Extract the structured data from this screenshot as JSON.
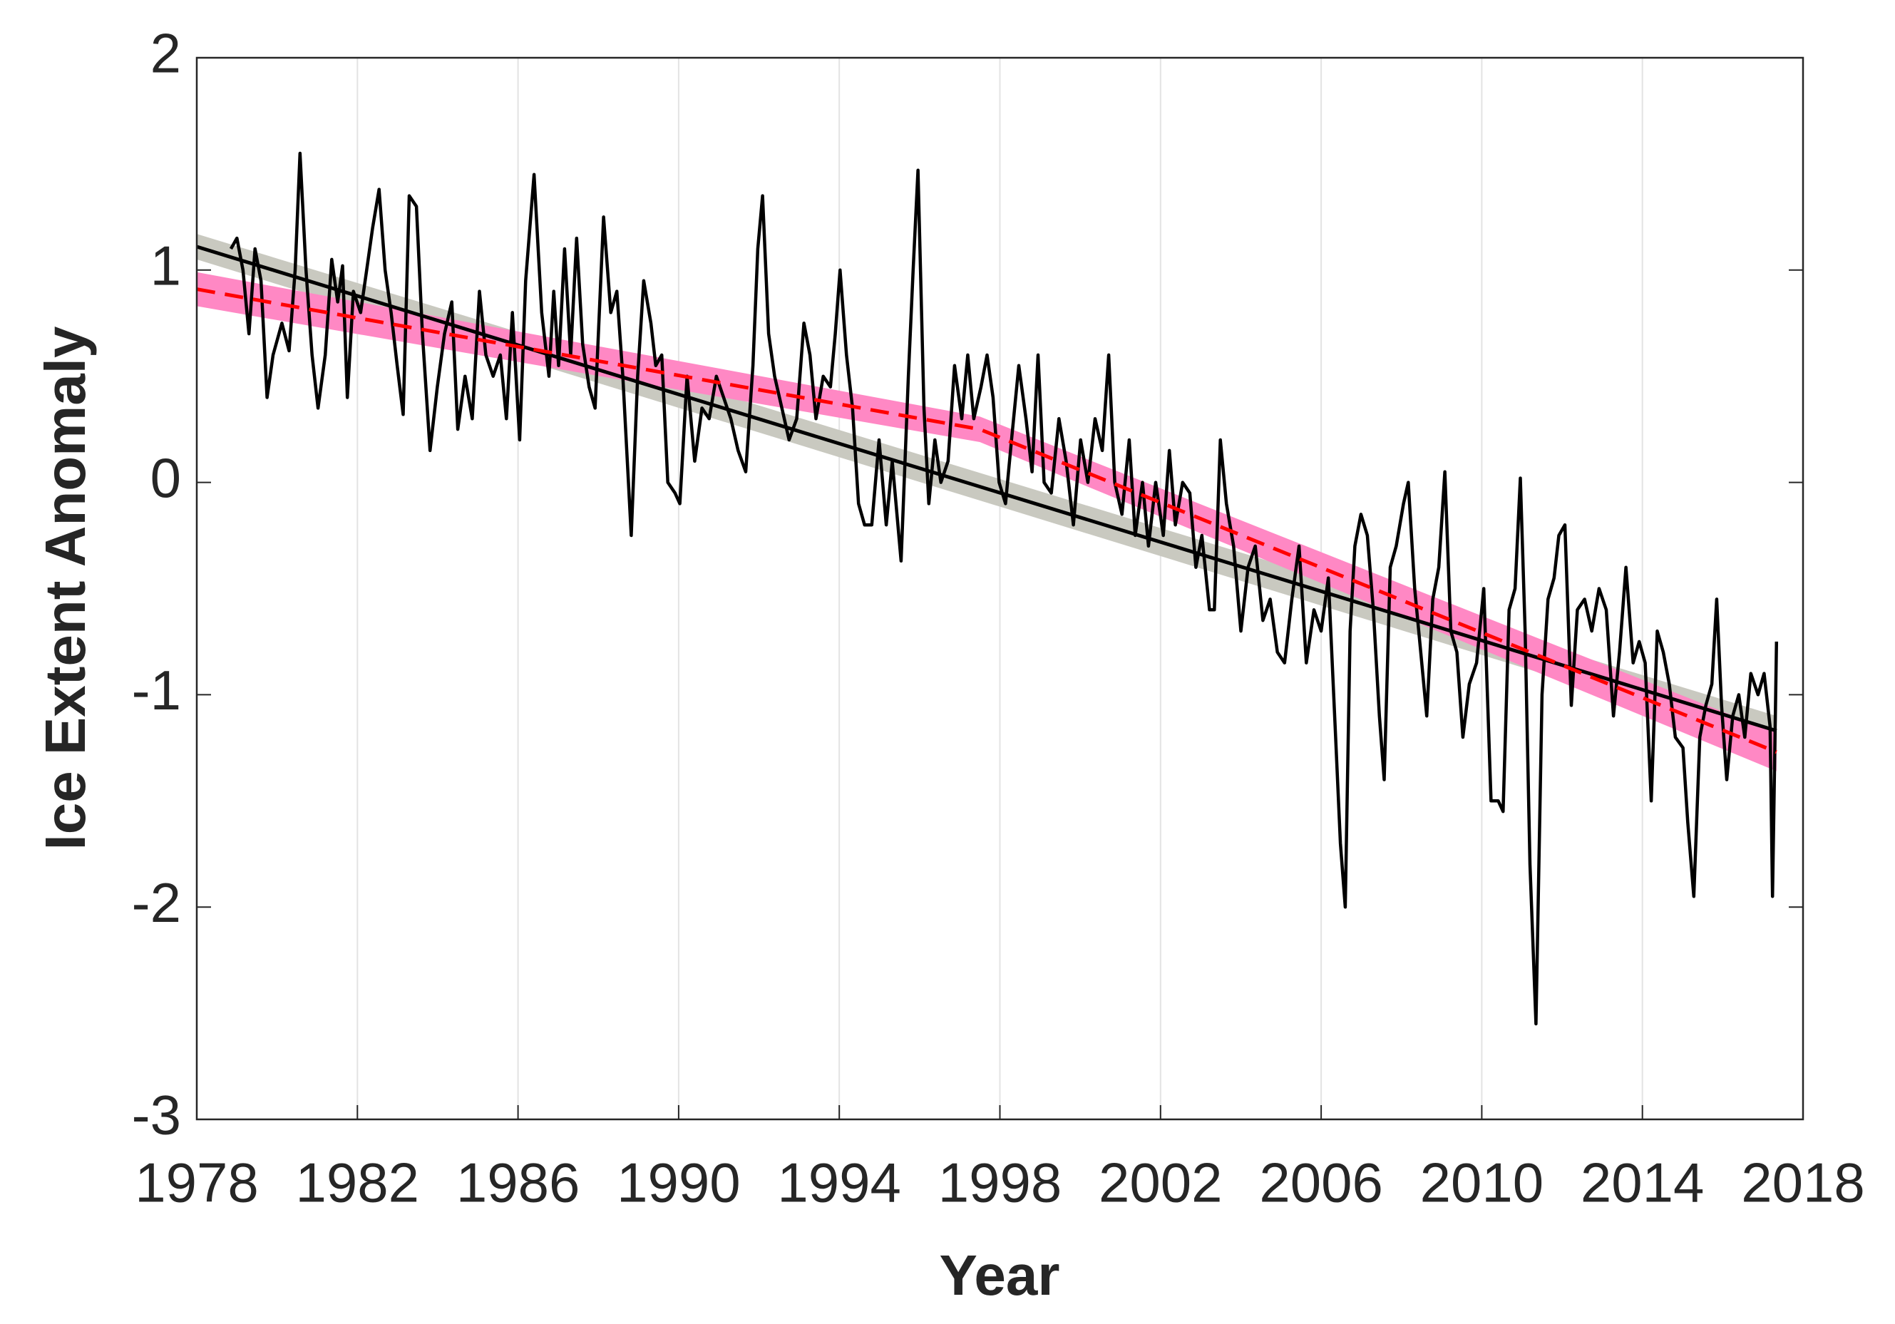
{
  "chart_data": {
    "type": "line",
    "xlabel": "Year",
    "ylabel": "Ice Extent Anomaly",
    "xlim": [
      1978,
      2018
    ],
    "ylim": [
      -3,
      2
    ],
    "xticks": [
      1978,
      1982,
      1986,
      1990,
      1994,
      1998,
      2002,
      2006,
      2010,
      2014,
      2018
    ],
    "yticks": [
      -3,
      -2,
      -1,
      0,
      1,
      2
    ],
    "grid": "x",
    "series": [
      {
        "color": "#000000",
        "x": [
          1978.85,
          1979.0,
          1979.15,
          1979.3,
          1979.45,
          1979.6,
          1979.75,
          1979.9,
          1980.12,
          1980.3,
          1980.45,
          1980.57,
          1980.72,
          1980.87,
          1981.02,
          1981.2,
          1981.36,
          1981.51,
          1981.63,
          1981.75,
          1981.9,
          1982.08,
          1982.23,
          1982.38,
          1982.54,
          1982.69,
          1982.84,
          1982.99,
          1983.14,
          1983.29,
          1983.47,
          1983.62,
          1983.81,
          1983.99,
          1984.17,
          1984.35,
          1984.5,
          1984.68,
          1984.86,
          1985.04,
          1985.2,
          1985.38,
          1985.56,
          1985.71,
          1985.86,
          1986.04,
          1986.19,
          1986.4,
          1986.59,
          1986.77,
          1986.89,
          1987.01,
          1987.16,
          1987.31,
          1987.46,
          1987.61,
          1987.77,
          1987.92,
          1988.13,
          1988.31,
          1988.46,
          1988.61,
          1988.82,
          1988.98,
          1989.13,
          1989.31,
          1989.43,
          1989.58,
          1989.73,
          1989.91,
          1990.03,
          1990.21,
          1990.4,
          1990.58,
          1990.76,
          1990.94,
          1991.12,
          1991.3,
          1991.48,
          1991.67,
          1991.85,
          1991.97,
          1992.09,
          1992.24,
          1992.39,
          1992.57,
          1992.75,
          1992.94,
          1993.12,
          1993.27,
          1993.42,
          1993.6,
          1993.78,
          1993.9,
          1994.02,
          1994.18,
          1994.33,
          1994.48,
          1994.63,
          1994.81,
          1994.99,
          1995.17,
          1995.32,
          1995.54,
          1995.72,
          1995.84,
          1995.96,
          1996.11,
          1996.23,
          1996.38,
          1996.53,
          1996.71,
          1996.87,
          1997.05,
          1997.2,
          1997.35,
          1997.53,
          1997.68,
          1997.83,
          1997.98,
          1998.14,
          1998.29,
          1998.47,
          1998.65,
          1998.8,
          1998.95,
          1999.1,
          1999.28,
          1999.47,
          1999.65,
          1999.83,
          2000.01,
          2000.19,
          2000.37,
          2000.55,
          2000.71,
          2000.86,
          2001.04,
          2001.22,
          2001.37,
          2001.55,
          2001.7,
          2001.88,
          2002.07,
          2002.22,
          2002.37,
          2002.55,
          2002.73,
          2002.88,
          2003.03,
          2003.22,
          2003.34,
          2003.49,
          2003.64,
          2003.82,
          2004.0,
          2004.18,
          2004.36,
          2004.55,
          2004.73,
          2004.91,
          2005.09,
          2005.27,
          2005.45,
          2005.63,
          2005.82,
          2006.0,
          2006.18,
          2006.36,
          2006.48,
          2006.6,
          2006.72,
          2006.84,
          2006.99,
          2007.15,
          2007.3,
          2007.45,
          2007.57,
          2007.72,
          2007.87,
          2008.05,
          2008.17,
          2008.33,
          2008.48,
          2008.63,
          2008.78,
          2008.93,
          2009.08,
          2009.23,
          2009.38,
          2009.53,
          2009.69,
          2009.87,
          2010.05,
          2010.23,
          2010.41,
          2010.53,
          2010.68,
          2010.83,
          2010.96,
          2011.08,
          2011.2,
          2011.35,
          2011.5,
          2011.65,
          2011.8,
          2011.92,
          2012.07,
          2012.23,
          2012.38,
          2012.56,
          2012.74,
          2012.92,
          2013.1,
          2013.28,
          2013.43,
          2013.59,
          2013.77,
          2013.92,
          2014.07,
          2014.22,
          2014.37,
          2014.52,
          2014.67,
          2014.82,
          2015.01,
          2015.13,
          2015.28,
          2015.43,
          2015.58,
          2015.73,
          2015.85,
          2015.97,
          2016.1,
          2016.25,
          2016.4,
          2016.55,
          2016.7,
          2016.88,
          2017.03,
          2017.18,
          2017.24,
          2017.34
        ],
        "values": [
          1.1,
          1.15,
          1.0,
          0.7,
          1.1,
          0.95,
          0.4,
          0.6,
          0.75,
          0.62,
          1.0,
          1.55,
          1.0,
          0.6,
          0.35,
          0.6,
          1.05,
          0.85,
          1.02,
          0.4,
          0.9,
          0.8,
          1.0,
          1.2,
          1.38,
          1.0,
          0.8,
          0.55,
          0.32,
          1.35,
          1.3,
          0.7,
          0.15,
          0.45,
          0.7,
          0.85,
          0.25,
          0.5,
          0.3,
          0.9,
          0.6,
          0.5,
          0.6,
          0.3,
          0.8,
          0.2,
          0.95,
          1.45,
          0.8,
          0.5,
          0.9,
          0.55,
          1.1,
          0.6,
          1.15,
          0.65,
          0.45,
          0.35,
          1.25,
          0.8,
          0.9,
          0.5,
          -0.25,
          0.5,
          0.95,
          0.75,
          0.55,
          0.6,
          0.0,
          -0.05,
          -0.1,
          0.5,
          0.1,
          0.35,
          0.3,
          0.5,
          0.4,
          0.3,
          0.15,
          0.05,
          0.55,
          1.1,
          1.35,
          0.7,
          0.5,
          0.35,
          0.2,
          0.3,
          0.75,
          0.6,
          0.3,
          0.5,
          0.45,
          0.7,
          1.0,
          0.6,
          0.35,
          -0.1,
          -0.2,
          -0.2,
          0.2,
          -0.2,
          0.1,
          -0.37,
          0.5,
          1.0,
          1.47,
          0.35,
          -0.1,
          0.2,
          0.0,
          0.1,
          0.55,
          0.3,
          0.6,
          0.3,
          0.45,
          0.6,
          0.4,
          0.0,
          -0.1,
          0.2,
          0.55,
          0.3,
          0.05,
          0.6,
          0.0,
          -0.05,
          0.3,
          0.1,
          -0.2,
          0.2,
          0.0,
          0.3,
          0.15,
          0.6,
          0.0,
          -0.15,
          0.2,
          -0.25,
          0.0,
          -0.3,
          0.0,
          -0.25,
          0.15,
          -0.2,
          0.0,
          -0.05,
          -0.4,
          -0.25,
          -0.6,
          -0.6,
          0.2,
          -0.1,
          -0.3,
          -0.7,
          -0.4,
          -0.3,
          -0.65,
          -0.55,
          -0.8,
          -0.85,
          -0.55,
          -0.3,
          -0.85,
          -0.6,
          -0.7,
          -0.45,
          -1.2,
          -1.7,
          -2.0,
          -0.7,
          -0.3,
          -0.15,
          -0.25,
          -0.6,
          -1.1,
          -1.4,
          -0.4,
          -0.3,
          -0.1,
          0.0,
          -0.5,
          -0.8,
          -1.1,
          -0.55,
          -0.4,
          0.05,
          -0.7,
          -0.8,
          -1.2,
          -0.95,
          -0.85,
          -0.5,
          -1.5,
          -1.5,
          -1.55,
          -0.6,
          -0.5,
          0.02,
          -0.7,
          -1.8,
          -2.55,
          -1.0,
          -0.55,
          -0.45,
          -0.25,
          -0.2,
          -1.05,
          -0.6,
          -0.55,
          -0.7,
          -0.5,
          -0.6,
          -1.1,
          -0.8,
          -0.4,
          -0.85,
          -0.75,
          -0.85,
          -1.5,
          -0.7,
          -0.8,
          -0.95,
          -1.2,
          -1.25,
          -1.6,
          -1.95,
          -1.2,
          -1.05,
          -0.95,
          -0.55,
          -1.05,
          -1.4,
          -1.1,
          -1.0,
          -1.2,
          -0.9,
          -1.0,
          -0.9,
          -1.15,
          -1.95,
          -0.75
        ]
      },
      {
        "color": "#000000",
        "x": [
          1978,
          2017.34
        ],
        "values": [
          1.11,
          -1.17
        ],
        "band": {
          "color": "#c9c9c0",
          "lower": [
            1.05,
            -1.24
          ],
          "upper": [
            1.17,
            -1.1
          ]
        }
      },
      {
        "color": "#ff0000",
        "dashed": true,
        "x": [
          1978,
          1997.5,
          2017.34
        ],
        "values": [
          0.91,
          0.25,
          -1.27
        ],
        "band": {
          "color": "#ff88c4",
          "lower": [
            0.83,
            0.19,
            -1.36
          ],
          "upper": [
            0.99,
            0.31,
            -1.18
          ]
        }
      }
    ]
  }
}
